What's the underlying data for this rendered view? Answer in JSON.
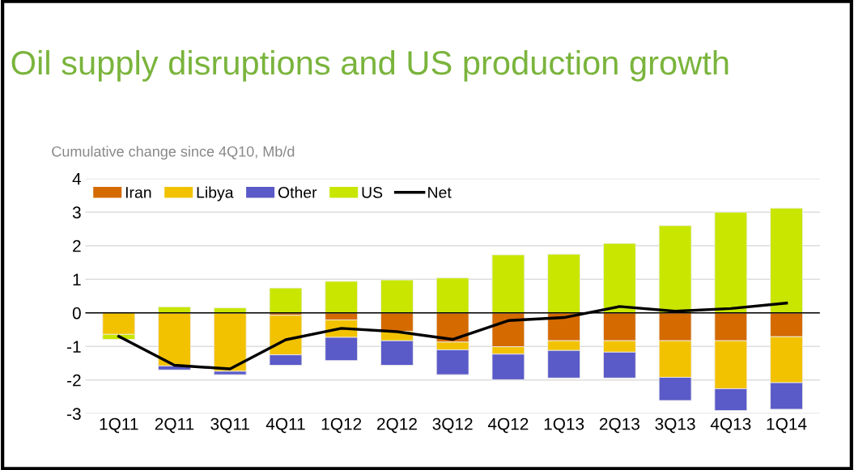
{
  "chart_data": {
    "type": "bar",
    "title": "Oil supply disruptions and US production growth",
    "ylabel": "Cumulative change since 4Q10, Mb/d",
    "categories": [
      "1Q11",
      "2Q11",
      "3Q11",
      "4Q11",
      "1Q12",
      "2Q12",
      "3Q12",
      "4Q12",
      "1Q13",
      "2Q13",
      "3Q13",
      "4Q13",
      "1Q14"
    ],
    "stacked": true,
    "series": [
      {
        "name": "Iran",
        "color": "#d46a00",
        "values": [
          null,
          null,
          null,
          -0.07,
          -0.21,
          -0.55,
          -0.87,
          -1.01,
          -0.83,
          -0.83,
          -0.83,
          -0.83,
          -0.71
        ]
      },
      {
        "name": "Libya",
        "color": "#f2c200",
        "values": [
          -0.64,
          -1.58,
          -1.74,
          -1.18,
          -0.52,
          -0.28,
          -0.23,
          -0.22,
          -0.29,
          -0.34,
          -1.09,
          -1.43,
          -1.37
        ]
      },
      {
        "name": "Other",
        "color": "#5a5ac8",
        "values": [
          null,
          -0.12,
          -0.1,
          -0.31,
          -0.69,
          -0.73,
          -0.74,
          -0.76,
          -0.82,
          -0.77,
          -0.69,
          -0.65,
          -0.79
        ]
      },
      {
        "name": "US",
        "color": "#c8e600",
        "values": [
          -0.15,
          0.18,
          0.15,
          0.74,
          0.94,
          0.98,
          1.04,
          1.73,
          1.75,
          2.07,
          2.6,
          3.0,
          3.12
        ]
      },
      {
        "name": "Net",
        "type": "line",
        "color": "#000000",
        "values": [
          -0.7,
          -1.56,
          -1.67,
          -0.8,
          -0.46,
          -0.56,
          -0.79,
          -0.23,
          -0.14,
          0.19,
          0.05,
          0.13,
          0.29
        ]
      }
    ],
    "ylim": [
      -3,
      4
    ],
    "yticks": [
      -3,
      -2,
      -1,
      0,
      1,
      2,
      3,
      4
    ],
    "grid": "y",
    "legend": "top left",
    "ref_lines": [
      {
        "axis": "y",
        "value": 0,
        "color": "#000000"
      }
    ]
  }
}
